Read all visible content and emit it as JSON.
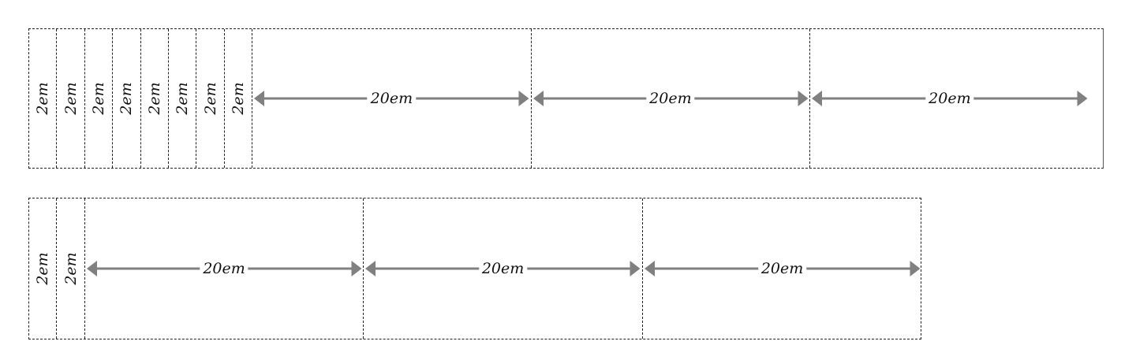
{
  "colors": {
    "border": "#222222",
    "arrow": "#808080",
    "text": "#111111"
  },
  "rows": [
    {
      "small_columns": [
        "2em",
        "2em",
        "2em",
        "2em",
        "2em",
        "2em",
        "2em",
        "2em"
      ],
      "wide_columns": [
        "20em",
        "20em",
        "20em"
      ]
    },
    {
      "small_columns": [
        "2em",
        "2em"
      ],
      "wide_columns": [
        "20em",
        "20em",
        "20em"
      ]
    }
  ]
}
